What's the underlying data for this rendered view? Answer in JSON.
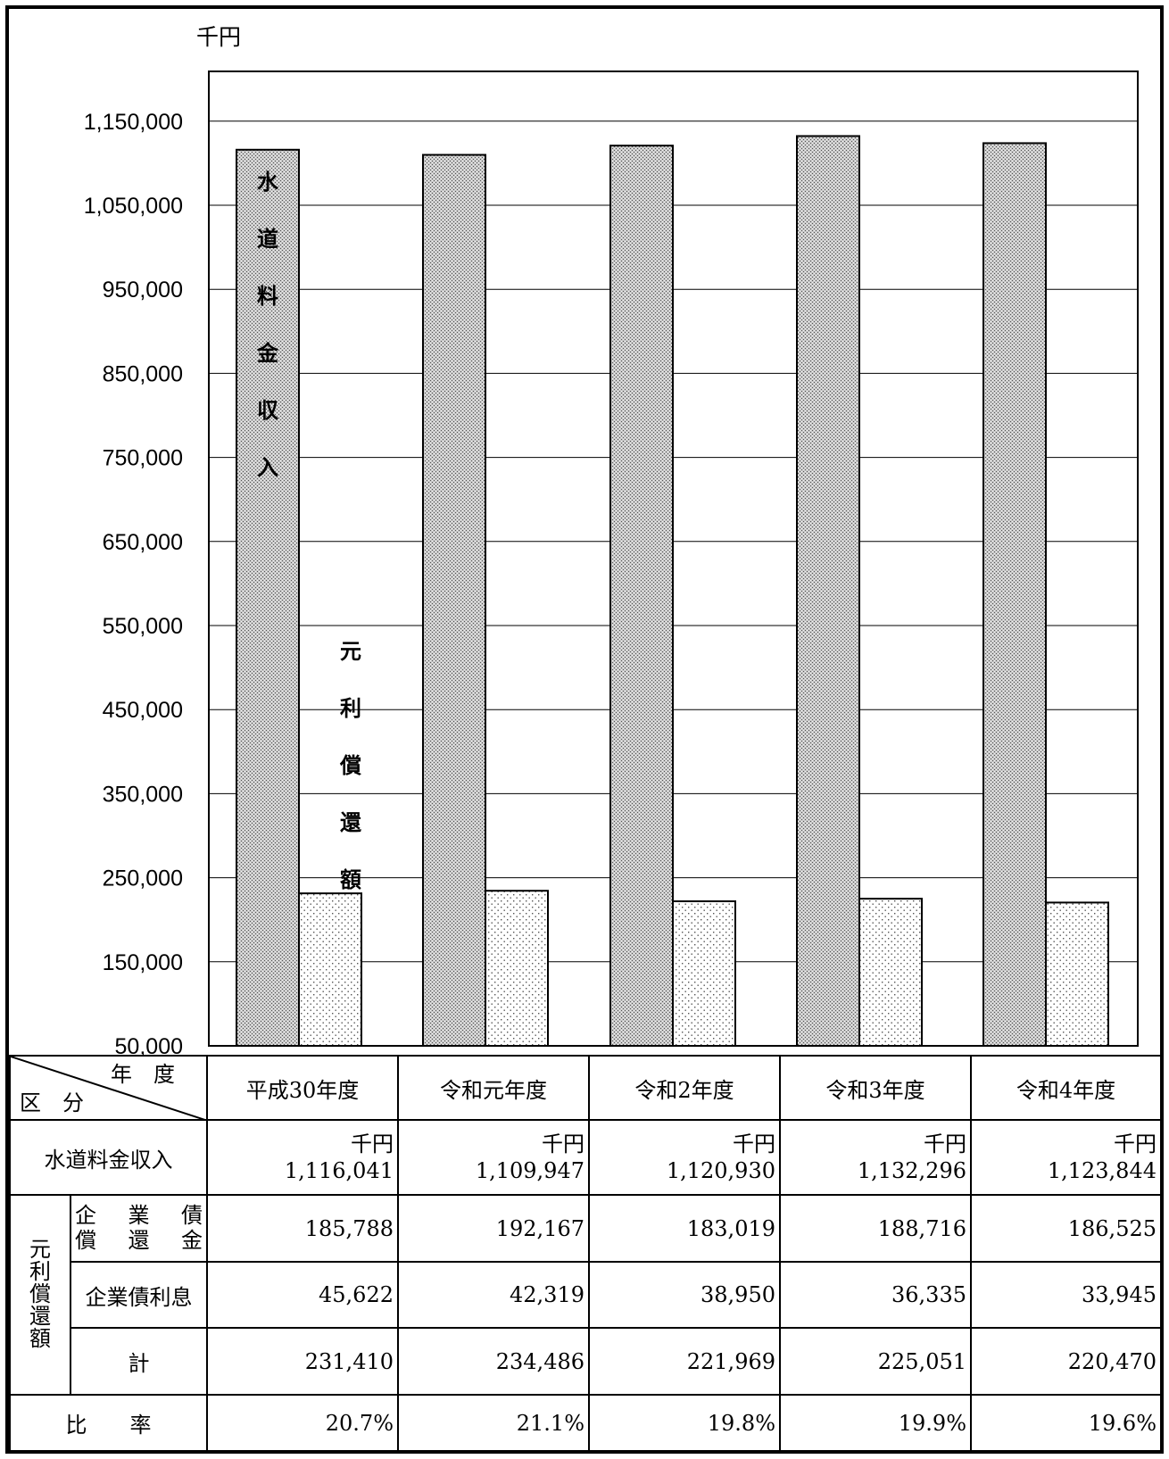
{
  "chart_data": {
    "type": "bar",
    "unit_label": "千円",
    "categories": [
      "平成30年度",
      "令和元年度",
      "令和2年度",
      "令和3年度",
      "令和4年度"
    ],
    "series": [
      {
        "name": "水道料金収入",
        "values": [
          1116041,
          1109947,
          1120930,
          1132296,
          1123844
        ],
        "color": "#bdbdbd",
        "pattern": "crosshatch"
      },
      {
        "name": "元利償還額",
        "values": [
          231410,
          234486,
          221969,
          225051,
          220470
        ],
        "color": "#ffffff",
        "pattern": "dots"
      }
    ],
    "ylim": [
      50000,
      1200000
    ],
    "yticks": [
      "1,150,000",
      "1,050,000",
      "950,000",
      "850,000",
      "750,000",
      "650,000",
      "550,000",
      "450,000",
      "350,000",
      "250,000",
      "150,000",
      "50,000"
    ],
    "ytick_values": [
      1150000,
      1050000,
      950000,
      850000,
      750000,
      650000,
      550000,
      450000,
      350000,
      250000,
      150000,
      50000
    ],
    "grid": true,
    "legend": "vertical labels on first bars"
  },
  "table": {
    "header": {
      "corner_top": "年　度",
      "corner_bottom": "区　分",
      "years": [
        "平成30年度",
        "令和元年度",
        "令和2年度",
        "令和3年度",
        "令和4年度"
      ]
    },
    "revenue": {
      "label": "水道料金収入",
      "unit": "千円",
      "values": [
        "1,116,041",
        "1,109,947",
        "1,120,930",
        "1,132,296",
        "1,123,844"
      ]
    },
    "repayment_group_label": "元利償還額",
    "principal": {
      "label_line1": [
        "企",
        "業",
        "債"
      ],
      "label_line2": [
        "償",
        "還",
        "金"
      ],
      "values": [
        "185,788",
        "192,167",
        "183,019",
        "188,716",
        "186,525"
      ]
    },
    "interest": {
      "label": "企業債利息",
      "values": [
        "45,622",
        "42,319",
        "38,950",
        "36,335",
        "33,945"
      ]
    },
    "total": {
      "label": "計",
      "values": [
        "231,410",
        "234,486",
        "221,969",
        "225,051",
        "220,470"
      ]
    },
    "ratio": {
      "label": "比　　率",
      "values": [
        "20.7%",
        "21.1%",
        "19.8%",
        "19.9%",
        "19.6%"
      ]
    }
  }
}
